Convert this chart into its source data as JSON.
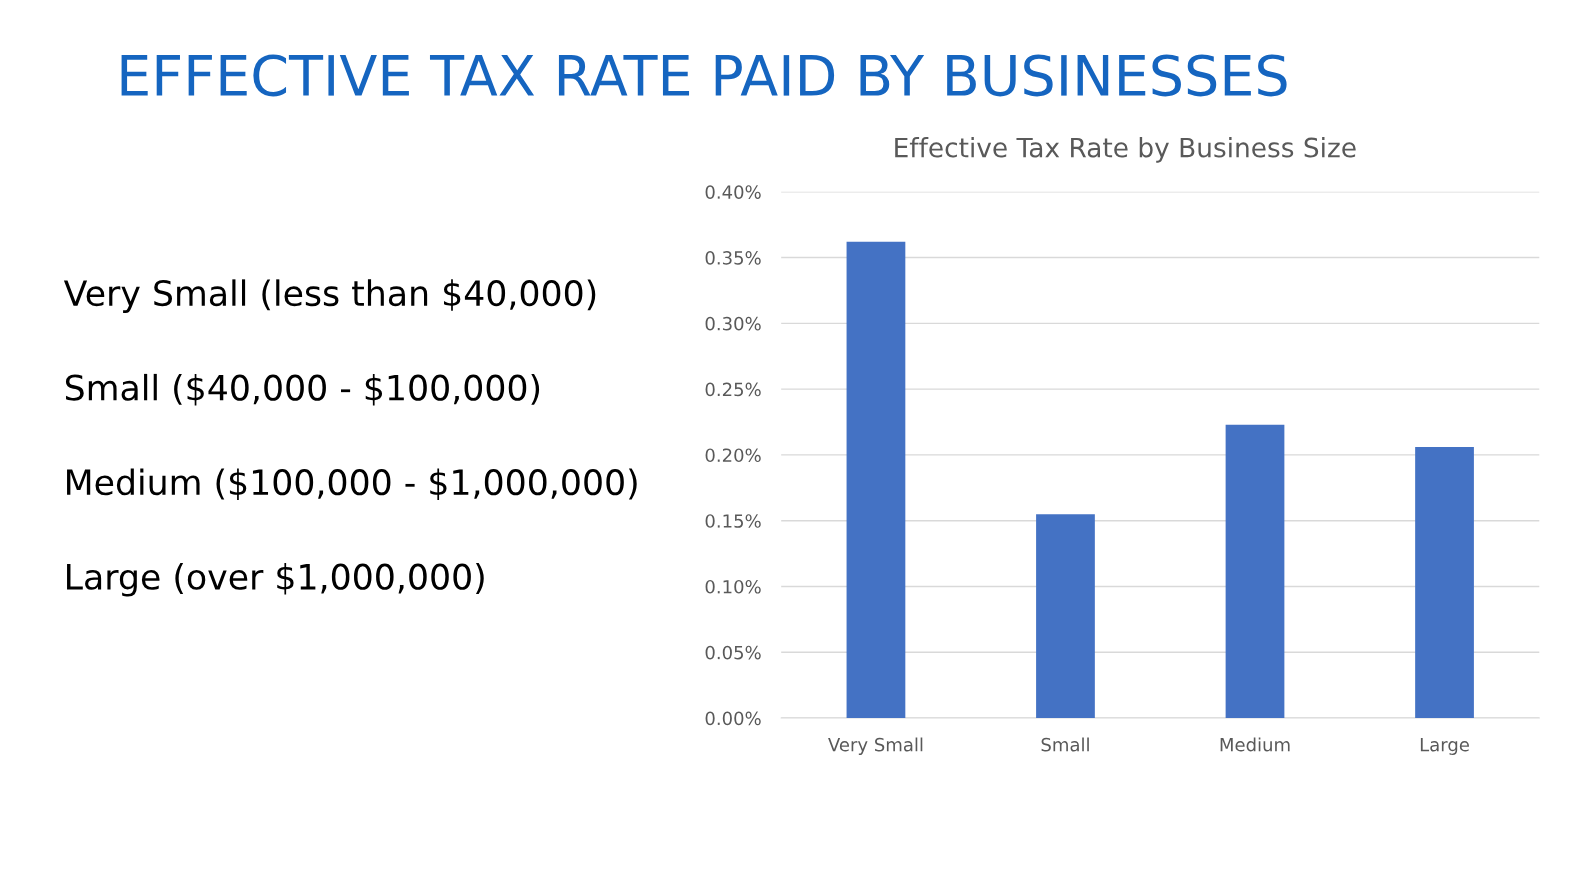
{
  "chart_data": {
    "type": "bar",
    "title": "EFFECTIVE TAX RATE PAID BY BUSINESSES",
    "subtitle": "Effective Tax Rate by Business Size",
    "categories": [
      "Very Small",
      "Small",
      "Medium",
      "Large"
    ],
    "values": [
      0.362,
      0.155,
      0.223,
      0.206
    ],
    "color": "#4472c4",
    "ylim": [
      0,
      0.4
    ],
    "yticks": [
      {
        "value": 0,
        "label": "0.00%"
      },
      {
        "value": 0.05,
        "label": "0.05%"
      },
      {
        "value": 0.1,
        "label": "0.10%"
      },
      {
        "value": 0.15,
        "label": "0.15%"
      },
      {
        "value": 0.2,
        "label": "0.20%"
      },
      {
        "value": 0.25,
        "label": "0.25%"
      },
      {
        "value": 0.3,
        "label": "0.30%"
      },
      {
        "value": 0.35,
        "label": "0.35%"
      },
      {
        "value": 0.4,
        "label": "0.40%"
      }
    ],
    "grid": "y",
    "annotations": [
      "Very Small (less than $40,000)",
      "Small ($40,000 - $100,000)",
      "Medium ($100,000 - $1,000,000)",
      "Large (over $1,000,000)"
    ]
  }
}
